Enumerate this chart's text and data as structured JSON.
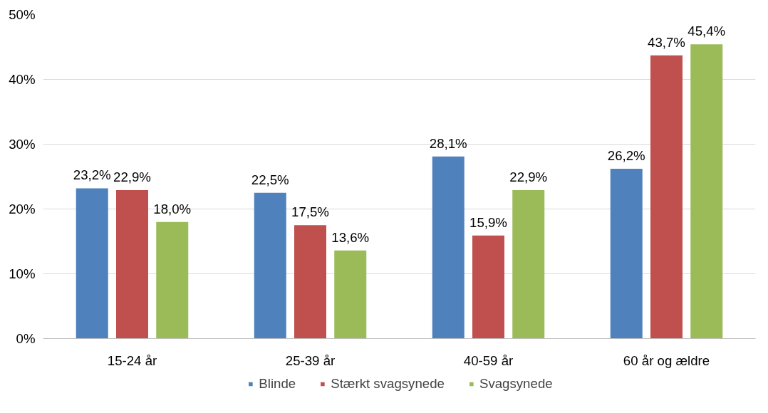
{
  "chart_data": {
    "type": "bar",
    "categories": [
      "15-24 år",
      "25-39 år",
      "40-59 år",
      "60 år og ældre"
    ],
    "series": [
      {
        "name": "Blinde",
        "color": "#4f81bd",
        "values": [
          23.2,
          22.5,
          28.1,
          26.2
        ],
        "value_labels": [
          "23,2%",
          "22,5%",
          "28,1%",
          "26,2%"
        ]
      },
      {
        "name": "Stærkt svagsynede",
        "color": "#c0504d",
        "values": [
          22.9,
          17.5,
          15.9,
          43.7
        ],
        "value_labels": [
          "22,9%",
          "17,5%",
          "15,9%",
          "43,7%"
        ]
      },
      {
        "name": "Svagsynede",
        "color": "#9bbb59",
        "values": [
          18.0,
          13.6,
          22.9,
          45.4
        ],
        "value_labels": [
          "18,0%",
          "13,6%",
          "22,9%",
          "45,4%"
        ]
      }
    ],
    "ylim": [
      0,
      50
    ],
    "yticks": [
      {
        "value": 0,
        "label": "0%"
      },
      {
        "value": 10,
        "label": "10%"
      },
      {
        "value": 20,
        "label": "20%"
      },
      {
        "value": 30,
        "label": "30%"
      },
      {
        "value": 40,
        "label": "40%"
      },
      {
        "value": 50,
        "label": "50%"
      }
    ],
    "grid": "y",
    "legend": "bottom"
  }
}
